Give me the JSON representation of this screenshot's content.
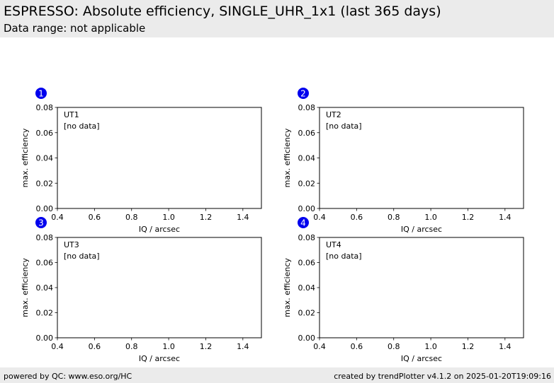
{
  "header": {
    "title": "ESPRESSO: Absolute efficiency, SINGLE_UHR_1x1 (last 365 days)",
    "subtitle": "Data range: not applicable"
  },
  "footer": {
    "left": "powered by QC: www.eso.org/HC",
    "right": "created by trendPlotter v4.1.2 on 2025-01-20T19:09:16"
  },
  "colors": {
    "badge": "#0000ee",
    "band": "#ebebeb"
  },
  "chart_data": [
    {
      "type": "scatter",
      "badge": "1",
      "name": "UT1",
      "annotation": "[no data]",
      "xlabel": "IQ / arcsec",
      "ylabel": "max. efficiency",
      "xlim": [
        0.4,
        1.5
      ],
      "ylim": [
        0.0,
        0.08
      ],
      "xticks": [
        "0.4",
        "0.6",
        "0.8",
        "1.0",
        "1.2",
        "1.4"
      ],
      "yticks": [
        "0.00",
        "0.02",
        "0.04",
        "0.06",
        "0.08"
      ],
      "points": []
    },
    {
      "type": "scatter",
      "badge": "2",
      "name": "UT2",
      "annotation": "[no data]",
      "xlabel": "IQ / arcsec",
      "ylabel": "max. efficiency",
      "xlim": [
        0.4,
        1.5
      ],
      "ylim": [
        0.0,
        0.08
      ],
      "xticks": [
        "0.4",
        "0.6",
        "0.8",
        "1.0",
        "1.2",
        "1.4"
      ],
      "yticks": [
        "0.00",
        "0.02",
        "0.04",
        "0.06",
        "0.08"
      ],
      "points": []
    },
    {
      "type": "scatter",
      "badge": "3",
      "name": "UT3",
      "annotation": "[no data]",
      "xlabel": "IQ / arcsec",
      "ylabel": "max. efficiency",
      "xlim": [
        0.4,
        1.5
      ],
      "ylim": [
        0.0,
        0.08
      ],
      "xticks": [
        "0.4",
        "0.6",
        "0.8",
        "1.0",
        "1.2",
        "1.4"
      ],
      "yticks": [
        "0.00",
        "0.02",
        "0.04",
        "0.06",
        "0.08"
      ],
      "points": []
    },
    {
      "type": "scatter",
      "badge": "4",
      "name": "UT4",
      "annotation": "[no data]",
      "xlabel": "IQ / arcsec",
      "ylabel": "max. efficiency",
      "xlim": [
        0.4,
        1.5
      ],
      "ylim": [
        0.0,
        0.08
      ],
      "xticks": [
        "0.4",
        "0.6",
        "0.8",
        "1.0",
        "1.2",
        "1.4"
      ],
      "yticks": [
        "0.00",
        "0.02",
        "0.04",
        "0.06",
        "0.08"
      ],
      "points": []
    }
  ]
}
